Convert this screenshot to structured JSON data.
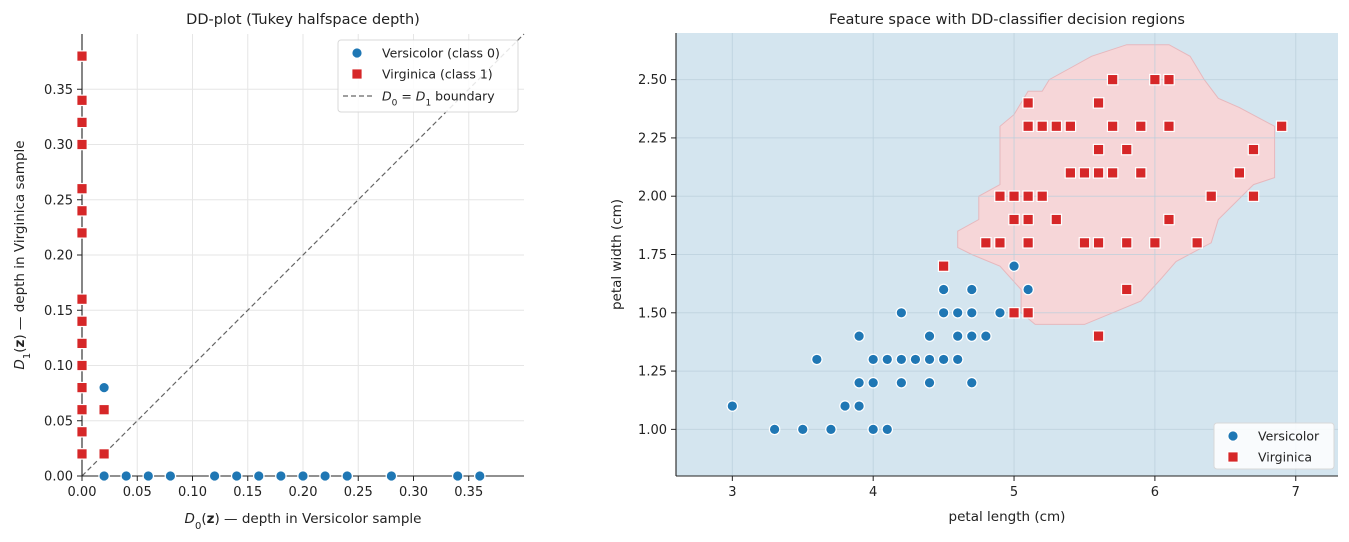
{
  "chart_data": [
    {
      "type": "scatter",
      "title": "DD-plot (Tukey halfspace depth)",
      "xlabel": "D_0(z) — depth in Versicolor sample",
      "ylabel": "D_1(z) — depth in Virginica sample",
      "xlabel_parts": [
        "D",
        "0",
        "(",
        "z",
        ") — depth in Versicolor sample"
      ],
      "ylabel_parts": [
        "D",
        "1",
        "(",
        "z",
        ") — depth in Virginica sample"
      ],
      "xlim": [
        0,
        0.4
      ],
      "ylim": [
        0,
        0.4
      ],
      "xticks": [
        "0.00",
        "0.05",
        "0.10",
        "0.15",
        "0.20",
        "0.25",
        "0.30",
        "0.35"
      ],
      "yticks": [
        "0.00",
        "0.05",
        "0.10",
        "0.15",
        "0.20",
        "0.25",
        "0.30",
        "0.35"
      ],
      "grid": true,
      "legend_position": "top-right",
      "legend": [
        {
          "label": "Versicolor (class 0)",
          "marker": "circle",
          "color": "#1f77b4"
        },
        {
          "label": "Virginica (class 1)",
          "marker": "square",
          "color": "#d62728"
        },
        {
          "label_parts": [
            "D",
            "0",
            " = ",
            "D",
            "1",
            " boundary"
          ],
          "marker": "dashed-line",
          "color": "#666666"
        }
      ],
      "series": [
        {
          "name": "Versicolor (class 0)",
          "color": "#1f77b4",
          "marker": "circle",
          "points": [
            [
              0.02,
              0.08
            ],
            [
              0.02,
              0
            ],
            [
              0.04,
              0
            ],
            [
              0.06,
              0
            ],
            [
              0.08,
              0
            ],
            [
              0.12,
              0
            ],
            [
              0.14,
              0
            ],
            [
              0.16,
              0
            ],
            [
              0.18,
              0
            ],
            [
              0.2,
              0
            ],
            [
              0.22,
              0
            ],
            [
              0.24,
              0
            ],
            [
              0.28,
              0
            ],
            [
              0.34,
              0
            ],
            [
              0.36,
              0
            ]
          ]
        },
        {
          "name": "Virginica (class 1)",
          "color": "#d62728",
          "marker": "square",
          "points": [
            [
              0.02,
              0.06
            ],
            [
              0.02,
              0.02
            ],
            [
              0,
              0.38
            ],
            [
              0,
              0.34
            ],
            [
              0,
              0.32
            ],
            [
              0,
              0.3
            ],
            [
              0,
              0.26
            ],
            [
              0,
              0.24
            ],
            [
              0,
              0.22
            ],
            [
              0,
              0.16
            ],
            [
              0,
              0.14
            ],
            [
              0,
              0.12
            ],
            [
              0,
              0.1
            ],
            [
              0,
              0.08
            ],
            [
              0,
              0.06
            ],
            [
              0,
              0.04
            ],
            [
              0,
              0.02
            ]
          ]
        }
      ],
      "reference_line": {
        "type": "diagonal",
        "style": "dashed",
        "color": "#666666"
      }
    },
    {
      "type": "scatter",
      "title": "Feature space with DD-classifier decision regions",
      "xlabel": "petal length (cm)",
      "ylabel": "petal width (cm)",
      "xlim": [
        2.6,
        7.3
      ],
      "ylim": [
        0.8,
        2.7
      ],
      "xticks": [
        "3",
        "4",
        "5",
        "6",
        "7"
      ],
      "yticks": [
        "1.00",
        "1.25",
        "1.50",
        "1.75",
        "2.00",
        "2.25",
        "2.50"
      ],
      "grid": true,
      "legend_position": "bottom-right",
      "background_region_color": "#d4e5ef",
      "virginica_region_color": "#f6d6d8",
      "virginica_region_outline": [
        [
          5.25,
          2.5
        ],
        [
          5.2,
          2.45
        ],
        [
          5.1,
          2.45
        ],
        [
          5.05,
          2.4
        ],
        [
          5.0,
          2.35
        ],
        [
          4.9,
          2.3
        ],
        [
          4.9,
          2.05
        ],
        [
          4.75,
          2.0
        ],
        [
          4.75,
          1.9
        ],
        [
          4.6,
          1.85
        ],
        [
          4.6,
          1.78
        ],
        [
          4.7,
          1.75
        ],
        [
          4.9,
          1.7
        ],
        [
          5.05,
          1.6
        ],
        [
          5.05,
          1.5
        ],
        [
          5.15,
          1.45
        ],
        [
          5.5,
          1.45
        ],
        [
          5.7,
          1.5
        ],
        [
          5.9,
          1.55
        ],
        [
          6.05,
          1.65
        ],
        [
          6.15,
          1.72
        ],
        [
          6.4,
          1.8
        ],
        [
          6.45,
          1.9
        ],
        [
          6.7,
          2.05
        ],
        [
          6.85,
          2.08
        ],
        [
          6.85,
          2.3
        ],
        [
          6.6,
          2.38
        ],
        [
          6.45,
          2.42
        ],
        [
          6.35,
          2.5
        ],
        [
          6.25,
          2.6
        ],
        [
          6.1,
          2.65
        ],
        [
          5.8,
          2.65
        ],
        [
          5.55,
          2.6
        ],
        [
          5.4,
          2.55
        ]
      ],
      "legend": [
        {
          "label": "Versicolor",
          "marker": "circle",
          "color": "#1f77b4"
        },
        {
          "label": "Virginica",
          "marker": "square",
          "color": "#d62728"
        }
      ],
      "series": [
        {
          "name": "Versicolor",
          "color": "#1f77b4",
          "marker": "circle",
          "points": [
            [
              3.0,
              1.1
            ],
            [
              3.3,
              1.0
            ],
            [
              3.5,
              1.0
            ],
            [
              3.6,
              1.3
            ],
            [
              3.7,
              1.0
            ],
            [
              3.8,
              1.1
            ],
            [
              3.9,
              1.1
            ],
            [
              3.9,
              1.2
            ],
            [
              3.9,
              1.4
            ],
            [
              4.0,
              1.0
            ],
            [
              4.0,
              1.2
            ],
            [
              4.0,
              1.3
            ],
            [
              4.1,
              1.0
            ],
            [
              4.1,
              1.3
            ],
            [
              4.2,
              1.2
            ],
            [
              4.2,
              1.3
            ],
            [
              4.2,
              1.5
            ],
            [
              4.3,
              1.3
            ],
            [
              4.4,
              1.2
            ],
            [
              4.4,
              1.3
            ],
            [
              4.4,
              1.4
            ],
            [
              4.5,
              1.3
            ],
            [
              4.5,
              1.5
            ],
            [
              4.5,
              1.6
            ],
            [
              4.6,
              1.3
            ],
            [
              4.6,
              1.4
            ],
            [
              4.6,
              1.5
            ],
            [
              4.7,
              1.2
            ],
            [
              4.7,
              1.4
            ],
            [
              4.7,
              1.5
            ],
            [
              4.7,
              1.6
            ],
            [
              4.8,
              1.4
            ],
            [
              4.9,
              1.5
            ],
            [
              5.0,
              1.7
            ],
            [
              5.1,
              1.6
            ]
          ]
        },
        {
          "name": "Virginica",
          "color": "#d62728",
          "marker": "square",
          "points": [
            [
              4.5,
              1.7
            ],
            [
              4.8,
              1.8
            ],
            [
              4.9,
              1.8
            ],
            [
              4.9,
              2.0
            ],
            [
              5.0,
              1.5
            ],
            [
              5.0,
              1.9
            ],
            [
              5.0,
              2.0
            ],
            [
              5.1,
              1.5
            ],
            [
              5.1,
              1.8
            ],
            [
              5.1,
              1.9
            ],
            [
              5.1,
              2.0
            ],
            [
              5.1,
              2.3
            ],
            [
              5.1,
              2.4
            ],
            [
              5.2,
              2.0
            ],
            [
              5.2,
              2.3
            ],
            [
              5.3,
              1.9
            ],
            [
              5.3,
              2.3
            ],
            [
              5.4,
              2.1
            ],
            [
              5.4,
              2.3
            ],
            [
              5.5,
              1.8
            ],
            [
              5.5,
              2.1
            ],
            [
              5.6,
              1.4
            ],
            [
              5.6,
              1.8
            ],
            [
              5.6,
              2.1
            ],
            [
              5.6,
              2.2
            ],
            [
              5.6,
              2.4
            ],
            [
              5.7,
              2.1
            ],
            [
              5.7,
              2.3
            ],
            [
              5.7,
              2.5
            ],
            [
              5.8,
              1.6
            ],
            [
              5.8,
              1.8
            ],
            [
              5.8,
              2.2
            ],
            [
              5.9,
              2.1
            ],
            [
              5.9,
              2.3
            ],
            [
              6.0,
              1.8
            ],
            [
              6.0,
              2.5
            ],
            [
              6.1,
              1.9
            ],
            [
              6.1,
              2.3
            ],
            [
              6.1,
              2.5
            ],
            [
              6.3,
              1.8
            ],
            [
              6.4,
              2.0
            ],
            [
              6.6,
              2.1
            ],
            [
              6.7,
              2.0
            ],
            [
              6.7,
              2.2
            ],
            [
              6.9,
              2.3
            ]
          ]
        }
      ]
    }
  ]
}
